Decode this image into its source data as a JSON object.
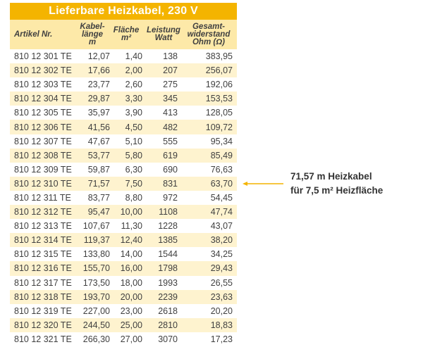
{
  "table": {
    "title": "Lieferbare Heizkabel, 230 V",
    "headers": {
      "article": [
        "Artikel Nr."
      ],
      "length": [
        "Kabel-",
        "länge",
        "m"
      ],
      "area": [
        "Fläche",
        "m²"
      ],
      "power": [
        "Leistung",
        "Watt"
      ],
      "resistance": [
        "Gesamt-",
        "widerstand",
        "Ohm (Ω)"
      ]
    },
    "rows": [
      [
        "810 12 301 TE",
        "12,07",
        "1,40",
        "138",
        "383,95"
      ],
      [
        "810 12 302 TE",
        "17,66",
        "2,00",
        "207",
        "256,07"
      ],
      [
        "810 12 303 TE",
        "23,77",
        "2,60",
        "275",
        "192,06"
      ],
      [
        "810 12 304 TE",
        "29,87",
        "3,30",
        "345",
        "153,53"
      ],
      [
        "810 12 305 TE",
        "35,97",
        "3,90",
        "413",
        "128,05"
      ],
      [
        "810 12 306 TE",
        "41,56",
        "4,50",
        "482",
        "109,72"
      ],
      [
        "810 12 307 TE",
        "47,67",
        "5,10",
        "555",
        "95,34"
      ],
      [
        "810 12 308 TE",
        "53,77",
        "5,80",
        "619",
        "85,49"
      ],
      [
        "810 12 309 TE",
        "59,87",
        "6,30",
        "690",
        "76,63"
      ],
      [
        "810 12 310 TE",
        "71,57",
        "7,50",
        "831",
        "63,70"
      ],
      [
        "810 12 311 TE",
        "83,77",
        "8,80",
        "972",
        "54,45"
      ],
      [
        "810 12 312 TE",
        "95,47",
        "10,00",
        "1108",
        "47,74"
      ],
      [
        "810 12 313 TE",
        "107,67",
        "11,30",
        "1228",
        "43,07"
      ],
      [
        "810 12 314 TE",
        "119,37",
        "12,40",
        "1385",
        "38,20"
      ],
      [
        "810 12 315 TE",
        "133,80",
        "14,00",
        "1544",
        "34,25"
      ],
      [
        "810 12 316 TE",
        "155,70",
        "16,00",
        "1798",
        "29,43"
      ],
      [
        "810 12 317 TE",
        "173,50",
        "18,00",
        "1993",
        "26,55"
      ],
      [
        "810 12 318 TE",
        "193,70",
        "20,00",
        "2239",
        "23,63"
      ],
      [
        "810 12 319 TE",
        "227,00",
        "23,00",
        "2618",
        "20,20"
      ],
      [
        "810 12 320 TE",
        "244,50",
        "25,00",
        "2810",
        "18,83"
      ],
      [
        "810 12 321 TE",
        "266,30",
        "27,00",
        "3070",
        "17,23"
      ]
    ]
  },
  "callout": {
    "line1": "71,57 m Heizkabel",
    "line2": "für 7,5 m² Heizfläche"
  },
  "colors": {
    "title_bg": "#f4b400",
    "header_bg": "#fde9a8",
    "stripe_bg": "#fef3cf",
    "arrow": "#f4b400"
  }
}
